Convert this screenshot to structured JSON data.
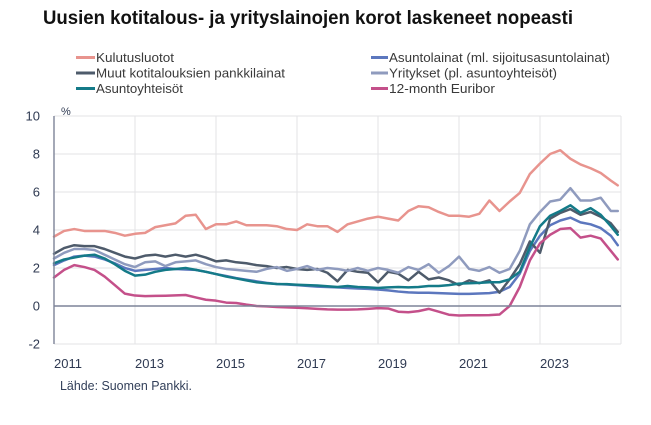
{
  "chart_data": {
    "type": "line",
    "title": "Uusien kotitalous- ja yrityslainojen korot laskeneet nopeasti",
    "xlabel": "",
    "ylabel": "%",
    "xlim": [
      2011,
      2025
    ],
    "ylim": [
      -2,
      10
    ],
    "yticks": [
      10,
      8,
      6,
      4,
      2,
      0,
      -2
    ],
    "xticks": [
      2011,
      2013,
      2015,
      2017,
      2019,
      2021,
      2023
    ],
    "grid": true,
    "legend_position": "top",
    "source": "Lähde: Suomen Pankki.",
    "x": [
      2011.0,
      2011.25,
      2011.5,
      2011.75,
      2012.0,
      2012.25,
      2012.5,
      2012.75,
      2013.0,
      2013.25,
      2013.5,
      2013.75,
      2014.0,
      2014.25,
      2014.5,
      2014.75,
      2015.0,
      2015.25,
      2015.5,
      2015.75,
      2016.0,
      2016.25,
      2016.5,
      2016.75,
      2017.0,
      2017.25,
      2017.5,
      2017.75,
      2018.0,
      2018.25,
      2018.5,
      2018.75,
      2019.0,
      2019.25,
      2019.5,
      2019.75,
      2020.0,
      2020.25,
      2020.5,
      2020.75,
      2021.0,
      2021.25,
      2021.5,
      2021.75,
      2022.0,
      2022.25,
      2022.5,
      2022.75,
      2023.0,
      2023.25,
      2023.5,
      2023.75,
      2024.0,
      2024.25,
      2024.5,
      2024.75,
      2024.92
    ],
    "series": [
      {
        "name": "Kulutusluotot",
        "color": "#e8948e",
        "values": [
          3.65,
          3.95,
          4.05,
          3.95,
          3.95,
          3.95,
          3.85,
          3.7,
          3.8,
          3.85,
          4.15,
          4.25,
          4.35,
          4.75,
          4.8,
          4.05,
          4.3,
          4.3,
          4.45,
          4.25,
          4.25,
          4.25,
          4.2,
          4.05,
          4.0,
          4.3,
          4.2,
          4.2,
          3.9,
          4.3,
          4.45,
          4.6,
          4.7,
          4.6,
          4.5,
          5.0,
          5.25,
          5.2,
          4.95,
          4.75,
          4.75,
          4.7,
          4.85,
          5.55,
          5.0,
          5.5,
          5.95,
          6.95,
          7.5,
          8.0,
          8.2,
          7.75,
          7.45,
          7.25,
          7.0,
          6.6,
          6.35
        ]
      },
      {
        "name": "Asuntolainat (ml. sijoitusasuntolainat)",
        "color": "#5c77be",
        "values": [
          2.15,
          2.4,
          2.6,
          2.65,
          2.6,
          2.45,
          2.25,
          2.0,
          1.85,
          1.9,
          1.95,
          2.0,
          1.95,
          1.92,
          1.9,
          1.8,
          1.68,
          1.58,
          1.47,
          1.38,
          1.3,
          1.22,
          1.16,
          1.13,
          1.1,
          1.06,
          1.02,
          1.0,
          0.98,
          0.95,
          0.92,
          0.9,
          0.87,
          0.82,
          0.76,
          0.72,
          0.7,
          0.7,
          0.68,
          0.66,
          0.64,
          0.64,
          0.66,
          0.68,
          0.75,
          1.0,
          1.7,
          2.9,
          3.7,
          4.25,
          4.5,
          4.65,
          4.4,
          4.3,
          4.1,
          3.7,
          3.2
        ]
      },
      {
        "name": "Muut kotitalouksien pankkilainat",
        "color": "#4e5b6b",
        "values": [
          2.75,
          3.05,
          3.2,
          3.15,
          3.15,
          3.0,
          2.8,
          2.6,
          2.5,
          2.65,
          2.7,
          2.6,
          2.7,
          2.6,
          2.7,
          2.55,
          2.35,
          2.4,
          2.3,
          2.25,
          2.15,
          2.1,
          2.0,
          2.05,
          1.95,
          1.9,
          1.95,
          1.75,
          1.3,
          1.9,
          1.8,
          1.75,
          1.25,
          1.8,
          1.7,
          1.35,
          1.8,
          1.4,
          1.5,
          1.35,
          1.1,
          1.35,
          1.2,
          1.35,
          0.7,
          1.4,
          2.2,
          3.4,
          2.8,
          4.6,
          4.9,
          5.1,
          4.8,
          4.95,
          4.7,
          4.35,
          3.9
        ]
      },
      {
        "name": "Yritykset (pl. asuntoyhteisöt)",
        "color": "#8f9bbe",
        "values": [
          2.5,
          2.8,
          3.0,
          3.0,
          2.95,
          2.7,
          2.45,
          2.2,
          2.05,
          2.3,
          2.35,
          2.1,
          2.3,
          2.35,
          2.4,
          2.2,
          2.05,
          1.95,
          1.9,
          1.85,
          1.8,
          1.95,
          2.05,
          1.85,
          1.95,
          2.1,
          1.9,
          2.0,
          1.95,
          1.85,
          2.0,
          1.85,
          2.0,
          1.9,
          1.75,
          2.05,
          1.9,
          2.2,
          1.75,
          2.1,
          2.6,
          1.95,
          1.85,
          2.05,
          1.75,
          1.95,
          2.9,
          4.3,
          4.95,
          5.5,
          5.6,
          6.2,
          5.55,
          5.55,
          5.7,
          5.0,
          5.0
        ]
      },
      {
        "name": "Asuntoyhteisöt",
        "color": "#147a88",
        "values": [
          2.25,
          2.45,
          2.55,
          2.65,
          2.7,
          2.5,
          2.2,
          1.85,
          1.6,
          1.65,
          1.8,
          1.9,
          1.95,
          2.0,
          1.9,
          1.8,
          1.68,
          1.55,
          1.45,
          1.35,
          1.25,
          1.2,
          1.16,
          1.15,
          1.12,
          1.1,
          1.08,
          1.04,
          1.0,
          1.05,
          1.0,
          0.98,
          0.95,
          0.98,
          1.0,
          0.98,
          1.0,
          1.05,
          1.05,
          1.1,
          1.18,
          1.2,
          1.22,
          1.25,
          1.25,
          1.4,
          1.8,
          3.1,
          4.2,
          4.75,
          5.0,
          5.3,
          4.9,
          5.15,
          4.8,
          4.2,
          3.75
        ]
      },
      {
        "name": "12-month Euribor",
        "color": "#c4508a",
        "values": [
          1.5,
          1.9,
          2.15,
          2.05,
          1.9,
          1.55,
          1.1,
          0.65,
          0.55,
          0.52,
          0.53,
          0.54,
          0.56,
          0.58,
          0.45,
          0.33,
          0.28,
          0.18,
          0.16,
          0.07,
          0.0,
          -0.02,
          -0.05,
          -0.07,
          -0.09,
          -0.12,
          -0.15,
          -0.18,
          -0.19,
          -0.19,
          -0.18,
          -0.15,
          -0.11,
          -0.13,
          -0.3,
          -0.33,
          -0.27,
          -0.15,
          -0.3,
          -0.46,
          -0.5,
          -0.49,
          -0.49,
          -0.48,
          -0.45,
          0.0,
          1.0,
          2.4,
          3.3,
          3.75,
          4.05,
          4.1,
          3.6,
          3.7,
          3.55,
          2.9,
          2.45
        ]
      }
    ]
  }
}
